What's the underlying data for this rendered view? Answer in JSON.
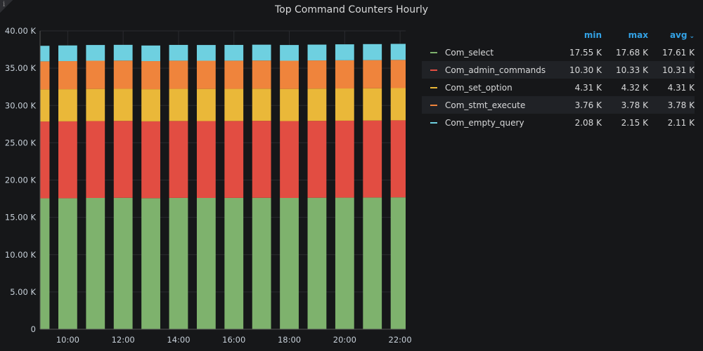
{
  "panel": {
    "title": "Top Command Counters Hourly",
    "info_icon": "info-icon"
  },
  "legend": {
    "headers": {
      "min": "min",
      "max": "max",
      "avg": "avg"
    },
    "sort_icon": "chevron-down-icon",
    "rows": [
      {
        "name": "Com_select",
        "color": "#7eb26d",
        "min": "17.55 K",
        "max": "17.68 K",
        "avg": "17.61 K"
      },
      {
        "name": "Com_admin_commands",
        "color": "#e24d42",
        "min": "10.30 K",
        "max": "10.33 K",
        "avg": "10.31 K"
      },
      {
        "name": "Com_set_option",
        "color": "#eab839",
        "min": "4.31 K",
        "max": "4.32 K",
        "avg": "4.31 K"
      },
      {
        "name": "Com_stmt_execute",
        "color": "#ef843c",
        "min": "3.76 K",
        "max": "3.78 K",
        "avg": "3.78 K"
      },
      {
        "name": "Com_empty_query",
        "color": "#6ed0e0",
        "min": "2.08 K",
        "max": "2.15 K",
        "avg": "2.11 K"
      }
    ]
  },
  "chart_data": {
    "type": "bar",
    "stacked": true,
    "title": "Top Command Counters Hourly",
    "ylim": [
      0,
      40000
    ],
    "y_ticks": [
      0,
      5000,
      10000,
      15000,
      20000,
      25000,
      30000,
      35000,
      40000
    ],
    "y_tick_labels": [
      "0",
      "5.00 K",
      "10.00 K",
      "15.00 K",
      "20.00 K",
      "25.00 K",
      "30.00 K",
      "35.00 K",
      "40.00 K"
    ],
    "x_hours": [
      9,
      10,
      11,
      12,
      13,
      14,
      15,
      16,
      17,
      18,
      19,
      20,
      21,
      22
    ],
    "x_tick_labels": [
      "10:00",
      "12:00",
      "14:00",
      "16:00",
      "18:00",
      "20:00",
      "22:00"
    ],
    "x_tick_hours": [
      10,
      12,
      14,
      16,
      18,
      20,
      22
    ],
    "grid": true,
    "legend_position": "right",
    "series": [
      {
        "name": "Com_select",
        "color": "#7eb26d",
        "values": [
          17550,
          17560,
          17600,
          17620,
          17570,
          17610,
          17600,
          17610,
          17620,
          17600,
          17630,
          17640,
          17660,
          17680
        ]
      },
      {
        "name": "Com_admin_commands",
        "color": "#e24d42",
        "values": [
          10300,
          10310,
          10310,
          10310,
          10300,
          10310,
          10310,
          10310,
          10320,
          10310,
          10310,
          10320,
          10320,
          10330
        ]
      },
      {
        "name": "Com_set_option",
        "color": "#eab839",
        "values": [
          4310,
          4310,
          4310,
          4310,
          4310,
          4310,
          4310,
          4310,
          4310,
          4310,
          4320,
          4320,
          4320,
          4320
        ]
      },
      {
        "name": "Com_stmt_execute",
        "color": "#ef843c",
        "values": [
          3760,
          3770,
          3780,
          3780,
          3770,
          3780,
          3780,
          3780,
          3780,
          3780,
          3780,
          3780,
          3780,
          3780
        ]
      },
      {
        "name": "Com_empty_query",
        "color": "#6ed0e0",
        "values": [
          2080,
          2100,
          2110,
          2110,
          2090,
          2110,
          2110,
          2110,
          2120,
          2110,
          2120,
          2140,
          2150,
          2150
        ]
      }
    ]
  }
}
